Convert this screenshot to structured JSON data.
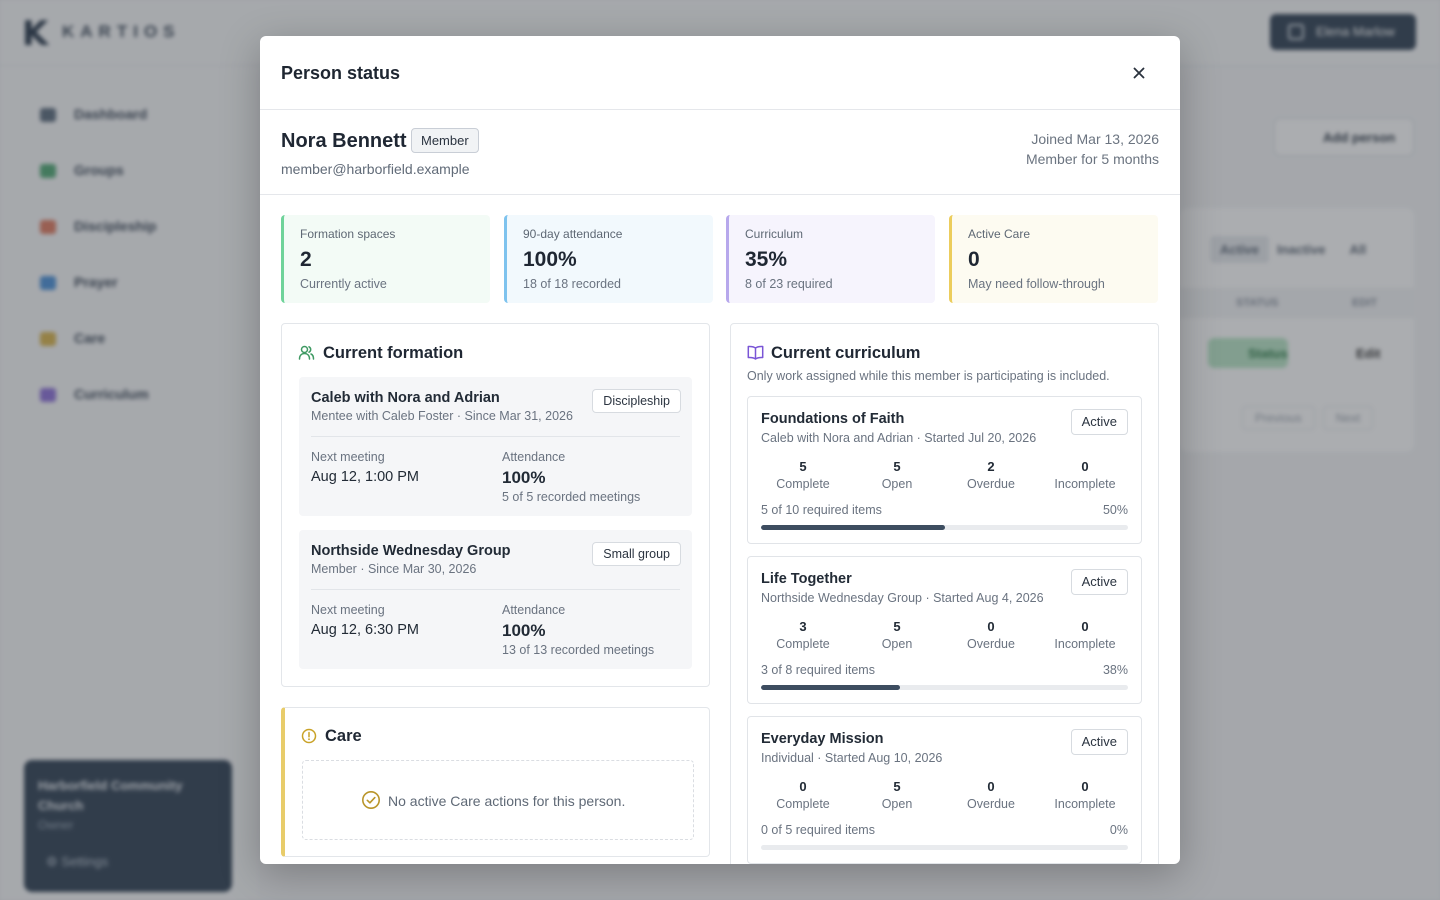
{
  "background": {
    "brand": "KARTIOS",
    "user_name": "Elena Marlow",
    "nav": [
      "Dashboard",
      "Groups",
      "Discipleship",
      "Prayer",
      "Care",
      "Curriculum"
    ],
    "org_name": "Harborfield Community Church",
    "org_role": "Owner",
    "settings_label": "Settings",
    "add_person_label": "Add person",
    "tabs": [
      "Active",
      "Inactive",
      "All"
    ],
    "table_headers": [
      "STATUS",
      "EDIT"
    ],
    "status_btn": "Status",
    "edit_btn": "Edit",
    "pager": [
      "Previous",
      "Next"
    ]
  },
  "modal": {
    "title": "Person status",
    "close_icon": "close-icon",
    "person": {
      "name": "Nora Bennett",
      "badge": "Member",
      "email": "member@harborfield.example",
      "joined": "Joined Mar 13, 2026",
      "tenure": "Member for 5 months"
    },
    "stats": [
      {
        "label": "Formation spaces",
        "value": "2",
        "sub": "Currently active",
        "accent": "#6fd39a",
        "bg": "#f3fbf6"
      },
      {
        "label": "90-day attendance",
        "value": "100%",
        "sub": "18 of 18 recorded",
        "accent": "#7ec3ee",
        "bg": "#f2f9fd"
      },
      {
        "label": "Curriculum",
        "value": "35%",
        "sub": "8 of 23 required",
        "accent": "#b7a8ec",
        "bg": "#f6f4fd"
      },
      {
        "label": "Active Care",
        "value": "0",
        "sub": "May need follow-through",
        "accent": "#eccd5d",
        "bg": "#fdfbf1"
      }
    ],
    "formation": {
      "title": "Current formation",
      "items": [
        {
          "name": "Caleb with Nora and Adrian",
          "sub": "Mentee with Caleb Foster · Since Mar 31, 2026",
          "tag": "Discipleship",
          "next_label": "Next meeting",
          "next": "Aug 12, 1:00 PM",
          "att_label": "Attendance",
          "att": "100%",
          "att_sub": "5 of 5 recorded meetings"
        },
        {
          "name": "Northside Wednesday Group",
          "sub": "Member · Since Mar 30, 2026",
          "tag": "Small group",
          "next_label": "Next meeting",
          "next": "Aug 12, 6:30 PM",
          "att_label": "Attendance",
          "att": "100%",
          "att_sub": "13 of 13 recorded meetings"
        }
      ]
    },
    "care": {
      "title": "Care",
      "empty": "No active Care actions for this person."
    },
    "curriculum": {
      "title": "Current curriculum",
      "note": "Only work assigned while this member is participating is included.",
      "items": [
        {
          "name": "Foundations of Faith",
          "sub": "Caleb with Nora and Adrian · Started Jul 20, 2026",
          "tag": "Active",
          "counts": [
            {
              "n": "5",
              "l": "Complete"
            },
            {
              "n": "5",
              "l": "Open"
            },
            {
              "n": "2",
              "l": "Overdue"
            },
            {
              "n": "0",
              "l": "Incomplete"
            }
          ],
          "req": "5 of 10 required items",
          "pct": "50%",
          "progress": 0.5
        },
        {
          "name": "Life Together",
          "sub": "Northside Wednesday Group · Started Aug 4, 2026",
          "tag": "Active",
          "counts": [
            {
              "n": "3",
              "l": "Complete"
            },
            {
              "n": "5",
              "l": "Open"
            },
            {
              "n": "0",
              "l": "Overdue"
            },
            {
              "n": "0",
              "l": "Incomplete"
            }
          ],
          "req": "3 of 8 required items",
          "pct": "38%",
          "progress": 0.38
        },
        {
          "name": "Everyday Mission",
          "sub": "Individual · Started Aug 10, 2026",
          "tag": "Active",
          "counts": [
            {
              "n": "0",
              "l": "Complete"
            },
            {
              "n": "5",
              "l": "Open"
            },
            {
              "n": "0",
              "l": "Overdue"
            },
            {
              "n": "0",
              "l": "Incomplete"
            }
          ],
          "req": "0 of 5 required items",
          "pct": "0%",
          "progress": 0
        }
      ]
    }
  }
}
